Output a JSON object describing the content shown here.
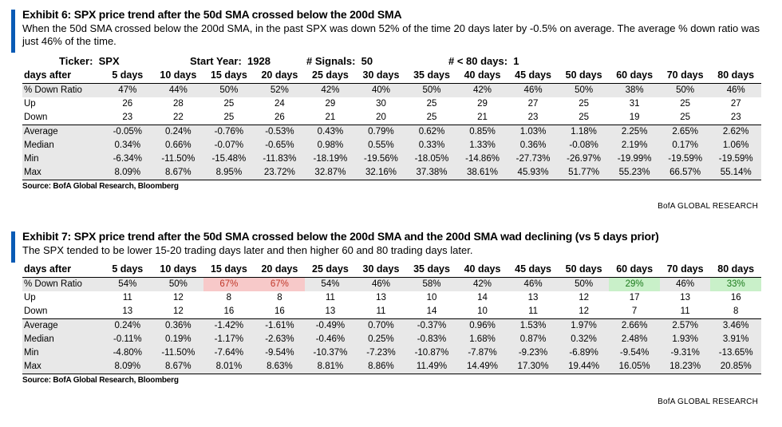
{
  "exhibit6": {
    "title": "Exhibit 6: SPX price trend after the 50d SMA crossed below the 200d SMA",
    "subtitle": "When the 50d SMA crossed below the 200d SMA, in the past SPX was down 52% of the time 20 days later by -0.5% on average. The average % down ratio was just 46% of the time.",
    "ticker": "Ticker:  SPX",
    "start_year": "Start Year:  1928",
    "signals": "# Signals:  50",
    "lt80": "# < 80 days:  1",
    "header_label": "days after",
    "columns": [
      "5 days",
      "10 days",
      "15 days",
      "20 days",
      "25 days",
      "30 days",
      "35 days",
      "40 days",
      "45 days",
      "50 days",
      "60 days",
      "70 days",
      "80 days"
    ],
    "rows": [
      {
        "label": "% Down Ratio",
        "values": [
          "47%",
          "44%",
          "50%",
          "52%",
          "42%",
          "40%",
          "50%",
          "42%",
          "46%",
          "50%",
          "38%",
          "50%",
          "46%"
        ]
      },
      {
        "label": "Up",
        "values": [
          "26",
          "28",
          "25",
          "24",
          "29",
          "30",
          "25",
          "29",
          "27",
          "25",
          "31",
          "25",
          "27"
        ]
      },
      {
        "label": "Down",
        "values": [
          "23",
          "22",
          "25",
          "26",
          "21",
          "20",
          "25",
          "21",
          "23",
          "25",
          "19",
          "25",
          "23"
        ]
      },
      {
        "label": "Average",
        "values": [
          "-0.05%",
          "0.24%",
          "-0.76%",
          "-0.53%",
          "0.43%",
          "0.79%",
          "0.62%",
          "0.85%",
          "1.03%",
          "1.18%",
          "2.25%",
          "2.65%",
          "2.62%"
        ]
      },
      {
        "label": "Median",
        "values": [
          "0.34%",
          "0.66%",
          "-0.07%",
          "-0.65%",
          "0.98%",
          "0.55%",
          "0.33%",
          "1.33%",
          "0.36%",
          "-0.08%",
          "2.19%",
          "0.17%",
          "1.06%"
        ]
      },
      {
        "label": "Min",
        "values": [
          "-6.34%",
          "-11.50%",
          "-15.48%",
          "-11.83%",
          "-18.19%",
          "-19.56%",
          "-18.05%",
          "-14.86%",
          "-27.73%",
          "-26.97%",
          "-19.99%",
          "-19.59%",
          "-19.59%"
        ]
      },
      {
        "label": "Max",
        "values": [
          "8.09%",
          "8.67%",
          "8.95%",
          "23.72%",
          "32.87%",
          "32.16%",
          "37.38%",
          "38.61%",
          "45.93%",
          "51.77%",
          "55.23%",
          "66.57%",
          "55.14%"
        ]
      }
    ],
    "source": "Source: BofA Global Research, Bloomberg",
    "brand": "BofA GLOBAL RESEARCH"
  },
  "exhibit7": {
    "title": "Exhibit 7: SPX price trend after the 50d SMA crossed below the 200d SMA and the 200d SMA wad declining (vs 5 days prior)",
    "subtitle": "The SPX tended to be lower 15-20 trading days later and then higher 60 and 80 trading days later.",
    "header_label": "days after",
    "columns": [
      "5 days",
      "10 days",
      "15 days",
      "20 days",
      "25 days",
      "30 days",
      "35 days",
      "40 days",
      "45 days",
      "50 days",
      "60 days",
      "70 days",
      "80 days"
    ],
    "rows": [
      {
        "label": "% Down Ratio",
        "values": [
          "54%",
          "50%",
          "67%",
          "67%",
          "54%",
          "46%",
          "58%",
          "42%",
          "46%",
          "50%",
          "29%",
          "46%",
          "33%"
        ]
      },
      {
        "label": "Up",
        "values": [
          "11",
          "12",
          "8",
          "8",
          "11",
          "13",
          "10",
          "14",
          "13",
          "12",
          "17",
          "13",
          "16"
        ]
      },
      {
        "label": "Down",
        "values": [
          "13",
          "12",
          "16",
          "16",
          "13",
          "11",
          "14",
          "10",
          "11",
          "12",
          "7",
          "11",
          "8"
        ]
      },
      {
        "label": "Average",
        "values": [
          "0.24%",
          "0.36%",
          "-1.42%",
          "-1.61%",
          "-0.49%",
          "0.70%",
          "-0.37%",
          "0.96%",
          "1.53%",
          "1.97%",
          "2.66%",
          "2.57%",
          "3.46%"
        ]
      },
      {
        "label": "Median",
        "values": [
          "-0.11%",
          "0.19%",
          "-1.17%",
          "-2.63%",
          "-0.46%",
          "0.25%",
          "-0.83%",
          "1.68%",
          "0.87%",
          "0.32%",
          "2.48%",
          "1.93%",
          "3.91%"
        ]
      },
      {
        "label": "Min",
        "values": [
          "-4.80%",
          "-11.50%",
          "-7.64%",
          "-9.54%",
          "-10.37%",
          "-7.23%",
          "-10.87%",
          "-7.87%",
          "-9.23%",
          "-6.89%",
          "-9.54%",
          "-9.31%",
          "-13.65%"
        ]
      },
      {
        "label": "Max",
        "values": [
          "8.09%",
          "8.67%",
          "8.01%",
          "8.63%",
          "8.81%",
          "8.86%",
          "11.49%",
          "14.49%",
          "17.30%",
          "19.44%",
          "16.05%",
          "18.23%",
          "20.85%"
        ]
      }
    ],
    "highlights": {
      "red": [
        2,
        3
      ],
      "green": [
        10,
        12
      ]
    },
    "source": "Source: BofA Global Research, Bloomberg",
    "brand": "BofA GLOBAL RESEARCH"
  },
  "colors": {
    "accent_bar": "#0a5bb5",
    "row_shade": "#e8e8e8",
    "highlight_red": "#f7c9c9",
    "highlight_green": "#c9f0c9"
  }
}
